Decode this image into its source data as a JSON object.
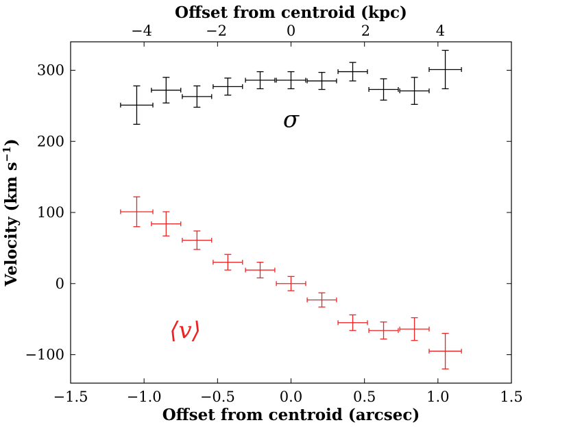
{
  "chart_data": {
    "type": "scatter",
    "title": "",
    "xlabel": "Offset from centroid (arcsec)",
    "x2label": "Offset from centroid (kpc)",
    "ylabel_main": "Velocity (km s",
    "ylabel_sup": "−1",
    "ylabel_close": ")",
    "xlim": [
      -1.5,
      1.5
    ],
    "ylim": [
      -140,
      340
    ],
    "x2lim": [
      -5.9,
      5.9
    ],
    "xticks": [
      -1.5,
      -1.0,
      -0.5,
      0.0,
      0.5,
      1.0,
      1.5
    ],
    "xtick_labels": [
      "−1.5",
      "−1.0",
      "−0.5",
      "0.0",
      "0.5",
      "1.0",
      "1.5"
    ],
    "yticks": [
      -100,
      0,
      100,
      200,
      300
    ],
    "ytick_labels": [
      "−100",
      "0",
      "100",
      "200",
      "300"
    ],
    "x2ticks": [
      -4,
      -2,
      0,
      2,
      4
    ],
    "x2tick_labels": [
      "−4",
      "−2",
      "0",
      "2",
      "4"
    ],
    "grid": false,
    "series": [
      {
        "name": "sigma",
        "label": "σ",
        "color": "#000000",
        "x": [
          -1.05,
          -0.85,
          -0.64,
          -0.43,
          -0.21,
          0.0,
          0.21,
          0.42,
          0.63,
          0.84,
          1.05
        ],
        "y": [
          251,
          272,
          263,
          277,
          286,
          286,
          285,
          298,
          273,
          271,
          301
        ],
        "xerr": [
          0.11,
          0.1,
          0.1,
          0.1,
          0.1,
          0.1,
          0.1,
          0.1,
          0.1,
          0.1,
          0.11
        ],
        "yerr": [
          27,
          18,
          15,
          12,
          12,
          12,
          12,
          13,
          15,
          19,
          27
        ]
      },
      {
        "name": "mean_velocity",
        "label": "⟨v⟩",
        "color": "#ee2222",
        "x": [
          -1.05,
          -0.85,
          -0.64,
          -0.43,
          -0.21,
          0.0,
          0.21,
          0.42,
          0.63,
          0.84,
          1.05
        ],
        "y": [
          101,
          84,
          61,
          30,
          19,
          0,
          -23,
          -55,
          -66,
          -64,
          -95
        ],
        "xerr": [
          0.11,
          0.1,
          0.1,
          0.1,
          0.1,
          0.1,
          0.1,
          0.1,
          0.1,
          0.1,
          0.11
        ],
        "yerr": [
          21,
          17,
          13,
          11,
          11,
          10,
          10,
          11,
          12,
          16,
          25
        ]
      }
    ],
    "annotations": [
      {
        "name": "sigma-annotation",
        "text": "σ",
        "x": 0.0,
        "y": 220,
        "color": "#000000"
      },
      {
        "name": "mean-velocity-annotation",
        "text": "⟨v⟩",
        "x": -0.72,
        "y": -77,
        "color": "#ee2222"
      }
    ]
  }
}
